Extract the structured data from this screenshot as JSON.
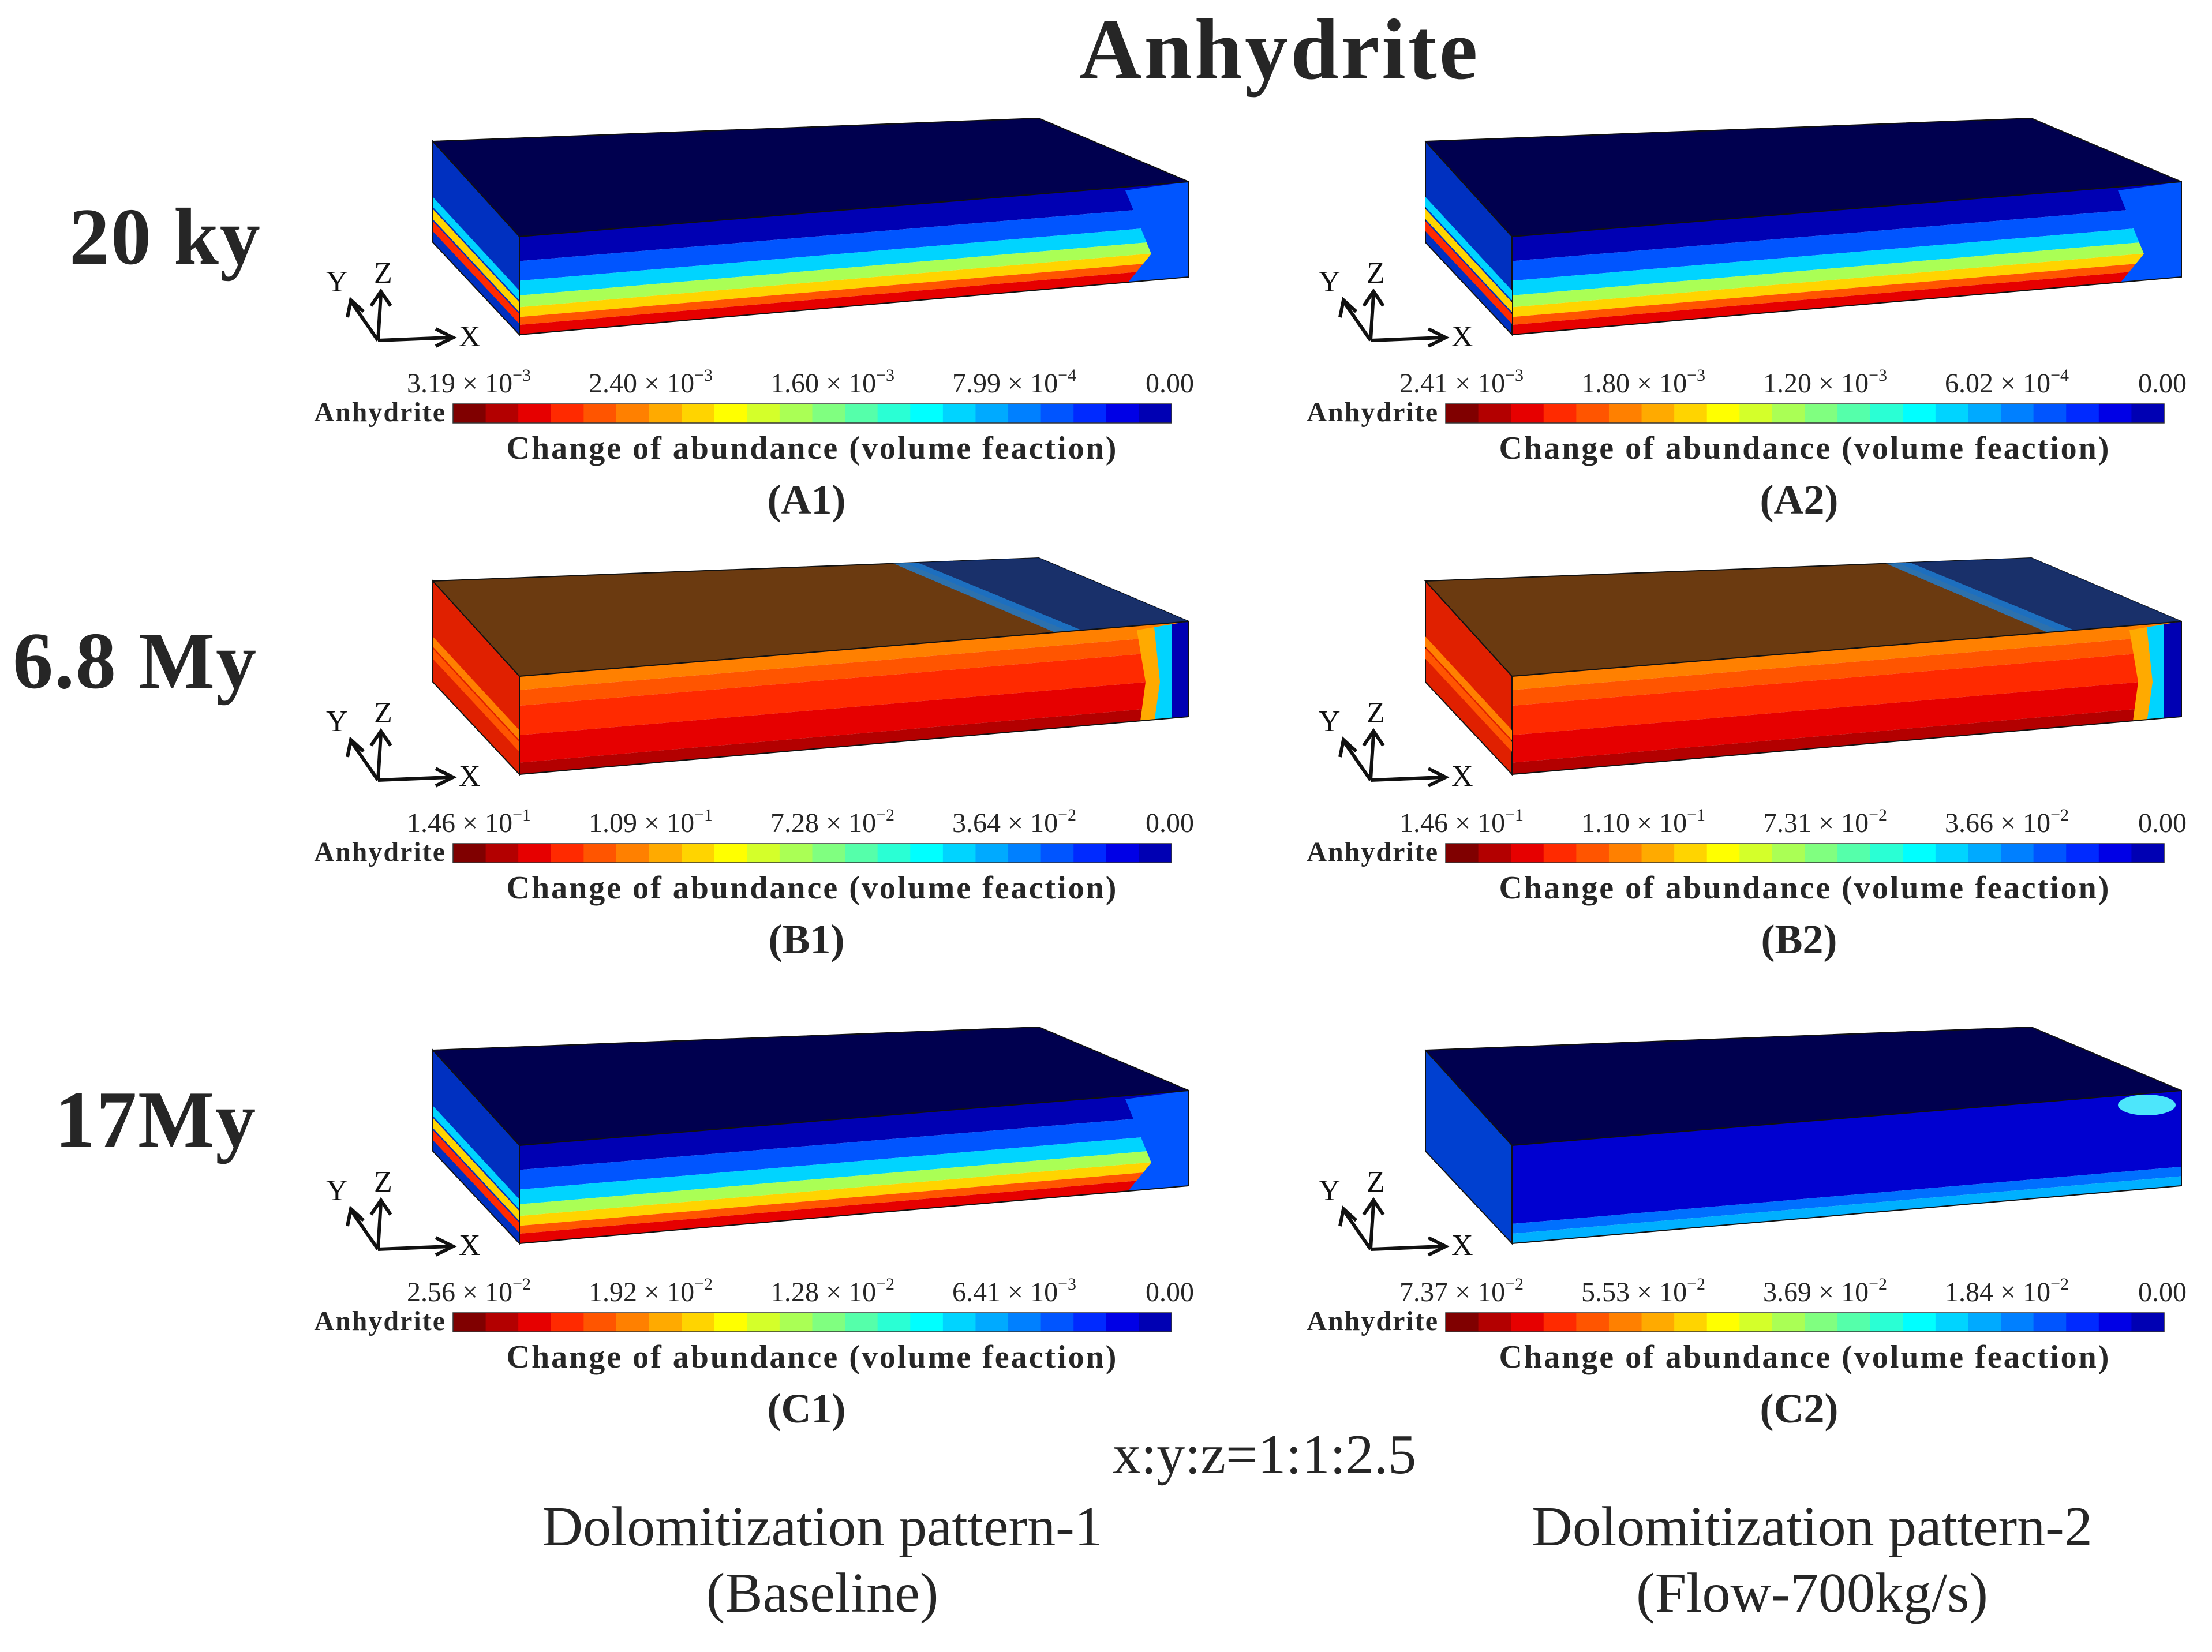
{
  "title": "Anhydrite",
  "rows": [
    {
      "time_label": "20 ky"
    },
    {
      "time_label": "6.8 My"
    },
    {
      "time_label": "17My"
    }
  ],
  "colormap": [
    "#800000",
    "#b30000",
    "#e60000",
    "#ff2a00",
    "#ff5500",
    "#ff8000",
    "#ffaa00",
    "#ffd400",
    "#ffff00",
    "#d4ff2a",
    "#aaff55",
    "#80ff80",
    "#55ffaa",
    "#2affd4",
    "#00ffff",
    "#00d4ff",
    "#00aaff",
    "#0080ff",
    "#0055ff",
    "#002aff",
    "#0000e6",
    "#0000b3"
  ],
  "axes": {
    "x": "X",
    "y": "Y",
    "z": "Z"
  },
  "panels": [
    {
      "id": "A1",
      "label": "(A1)",
      "pattern": "top-blue",
      "colorbar_label": "Anhydrite",
      "caption": "Change of abundance (volume feaction)",
      "ticks": [
        "3.19 × 10",
        "2.40 × 10",
        "1.60 × 10",
        "7.99 × 10",
        "0.00"
      ],
      "exps": [
        "−3",
        "−3",
        "−3",
        "−4",
        ""
      ]
    },
    {
      "id": "A2",
      "label": "(A2)",
      "pattern": "top-blue",
      "colorbar_label": "Anhydrite",
      "caption": "Change of abundance (volume feaction)",
      "ticks": [
        "2.41 × 10",
        "1.80 × 10",
        "1.20 × 10",
        "6.02 × 10",
        "0.00"
      ],
      "exps": [
        "−3",
        "−3",
        "−3",
        "−4",
        ""
      ]
    },
    {
      "id": "B1",
      "label": "(B1)",
      "pattern": "top-brown",
      "colorbar_label": "Anhydrite",
      "caption": "Change of abundance (volume feaction)",
      "ticks": [
        "1.46 × 10",
        "1.09 × 10",
        "7.28 × 10",
        "3.64 × 10",
        "0.00"
      ],
      "exps": [
        "−1",
        "−1",
        "−2",
        "−2",
        ""
      ]
    },
    {
      "id": "B2",
      "label": "(B2)",
      "pattern": "top-brown",
      "colorbar_label": "Anhydrite",
      "caption": "Change of abundance (volume feaction)",
      "ticks": [
        "1.46 × 10",
        "1.10 × 10",
        "7.31 × 10",
        "3.66 × 10",
        "0.00"
      ],
      "exps": [
        "−1",
        "−1",
        "−2",
        "−2",
        ""
      ]
    },
    {
      "id": "C1",
      "label": "(C1)",
      "pattern": "top-blue",
      "colorbar_label": "Anhydrite",
      "caption": "Change of abundance (volume feaction)",
      "ticks": [
        "2.56 × 10",
        "1.92 × 10",
        "1.28 × 10",
        "6.41 × 10",
        "0.00"
      ],
      "exps": [
        "−2",
        "−2",
        "−2",
        "−3",
        ""
      ]
    },
    {
      "id": "C2",
      "label": "(C2)",
      "pattern": "faint",
      "colorbar_label": "Anhydrite",
      "caption": "Change of abundance (volume feaction)",
      "ticks": [
        "7.37 × 10",
        "5.53 × 10",
        "3.69 × 10",
        "1.84 × 10",
        "0.00"
      ],
      "exps": [
        "−2",
        "−2",
        "−2",
        "−2",
        ""
      ]
    }
  ],
  "scale_ratio": "x:y:z=1:1:2.5",
  "patterns": [
    {
      "name": "Dolomitization pattern-1",
      "sub": "(Baseline)"
    },
    {
      "name": "Dolomitization pattern-2",
      "sub": "(Flow-700kg/s)"
    }
  ]
}
